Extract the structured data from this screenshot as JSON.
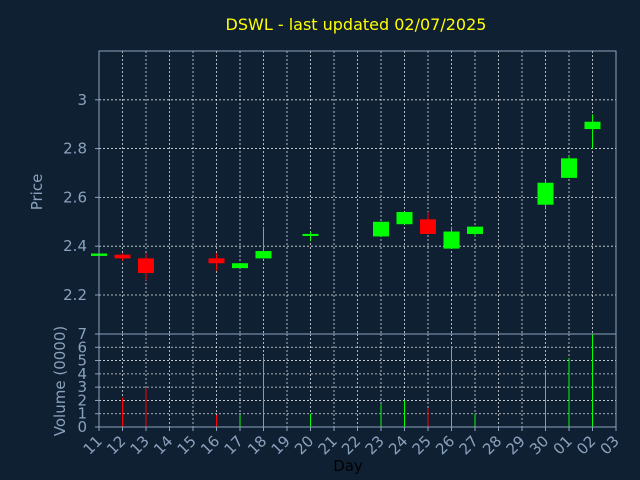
{
  "chart_data": [
    {
      "type": "candlestick",
      "title": "DSWL - last updated 02/07/2025",
      "ylabel": "Price",
      "xlabel": "Day",
      "ylim": [
        2.04,
        3.2
      ],
      "yticks": [
        2.2,
        2.4,
        2.6,
        2.8,
        3
      ],
      "ytick_labels": [
        "2.2",
        "2.4",
        "2.6",
        "2.8",
        "3"
      ],
      "grid": true,
      "x_tick_labels": [
        "11",
        "12",
        "13",
        "14",
        "15",
        "16",
        "17",
        "18",
        "19",
        "20",
        "21",
        "22",
        "23",
        "24",
        "25",
        "26",
        "27",
        "28",
        "29",
        "30",
        "01",
        "02",
        "03"
      ],
      "colors": {
        "up": "#00ff00",
        "down": "#ff0000",
        "neutral": "#ffffff"
      },
      "candles": [
        {
          "day": "11",
          "open": 2.36,
          "high": 2.375,
          "low": 2.355,
          "close": 2.37
        },
        {
          "day": "12",
          "open": 2.365,
          "high": 2.37,
          "low": 2.34,
          "close": 2.35
        },
        {
          "day": "13",
          "open": 2.35,
          "high": 2.37,
          "low": 2.26,
          "close": 2.29
        },
        {
          "day": "16",
          "open": 2.35,
          "high": 2.37,
          "low": 2.3,
          "close": 2.33
        },
        {
          "day": "17",
          "open": 2.31,
          "high": 2.33,
          "low": 2.31,
          "close": 2.33
        },
        {
          "day": "18",
          "open": 2.35,
          "high": 2.48,
          "low": 2.35,
          "close": 2.38
        },
        {
          "day": "20",
          "open": 2.445,
          "high": 2.46,
          "low": 2.42,
          "close": 2.45
        },
        {
          "day": "23",
          "open": 2.44,
          "high": 2.5,
          "low": 2.44,
          "close": 2.5
        },
        {
          "day": "24",
          "open": 2.49,
          "high": 2.54,
          "low": 2.49,
          "close": 2.54
        },
        {
          "day": "25",
          "open": 2.51,
          "high": 2.54,
          "low": 2.45,
          "close": 2.45
        },
        {
          "day": "26",
          "open": 2.39,
          "high": 2.48,
          "low": 2.39,
          "close": 2.46
        },
        {
          "day": "27",
          "open": 2.45,
          "high": 2.48,
          "low": 2.44,
          "close": 2.48
        },
        {
          "day": "30",
          "open": 2.57,
          "high": 2.67,
          "low": 2.55,
          "close": 2.66
        },
        {
          "day": "01",
          "open": 2.68,
          "high": 2.77,
          "low": 2.68,
          "close": 2.76
        },
        {
          "day": "02",
          "open": 2.88,
          "high": 2.94,
          "low": 2.8,
          "close": 2.91
        }
      ]
    },
    {
      "type": "bar",
      "ylabel": "Volume (0000)",
      "ylim": [
        0,
        7
      ],
      "yticks": [
        0,
        1,
        2,
        3,
        4,
        5,
        6,
        7
      ],
      "ytick_labels": [
        "0",
        "1",
        "2",
        "3",
        "4",
        "5",
        "6",
        "7"
      ],
      "volumes": [
        {
          "day": "12",
          "value": 2.2,
          "direction": "down"
        },
        {
          "day": "13",
          "value": 2.9,
          "direction": "down"
        },
        {
          "day": "16",
          "value": 0.9,
          "direction": "down"
        },
        {
          "day": "17",
          "value": 0.9,
          "direction": "up"
        },
        {
          "day": "18",
          "value": 5.3,
          "direction": "up"
        },
        {
          "day": "20",
          "value": 1.0,
          "direction": "up"
        },
        {
          "day": "23",
          "value": 1.7,
          "direction": "up"
        },
        {
          "day": "24",
          "value": 2.0,
          "direction": "up"
        },
        {
          "day": "25",
          "value": 1.4,
          "direction": "down"
        },
        {
          "day": "26",
          "value": 6.1,
          "direction": "up"
        },
        {
          "day": "27",
          "value": 1.0,
          "direction": "up"
        },
        {
          "day": "30",
          "value": 4.3,
          "direction": "up"
        },
        {
          "day": "01",
          "value": 5.2,
          "direction": "up"
        },
        {
          "day": "02",
          "value": 7.0,
          "direction": "up"
        }
      ]
    }
  ]
}
